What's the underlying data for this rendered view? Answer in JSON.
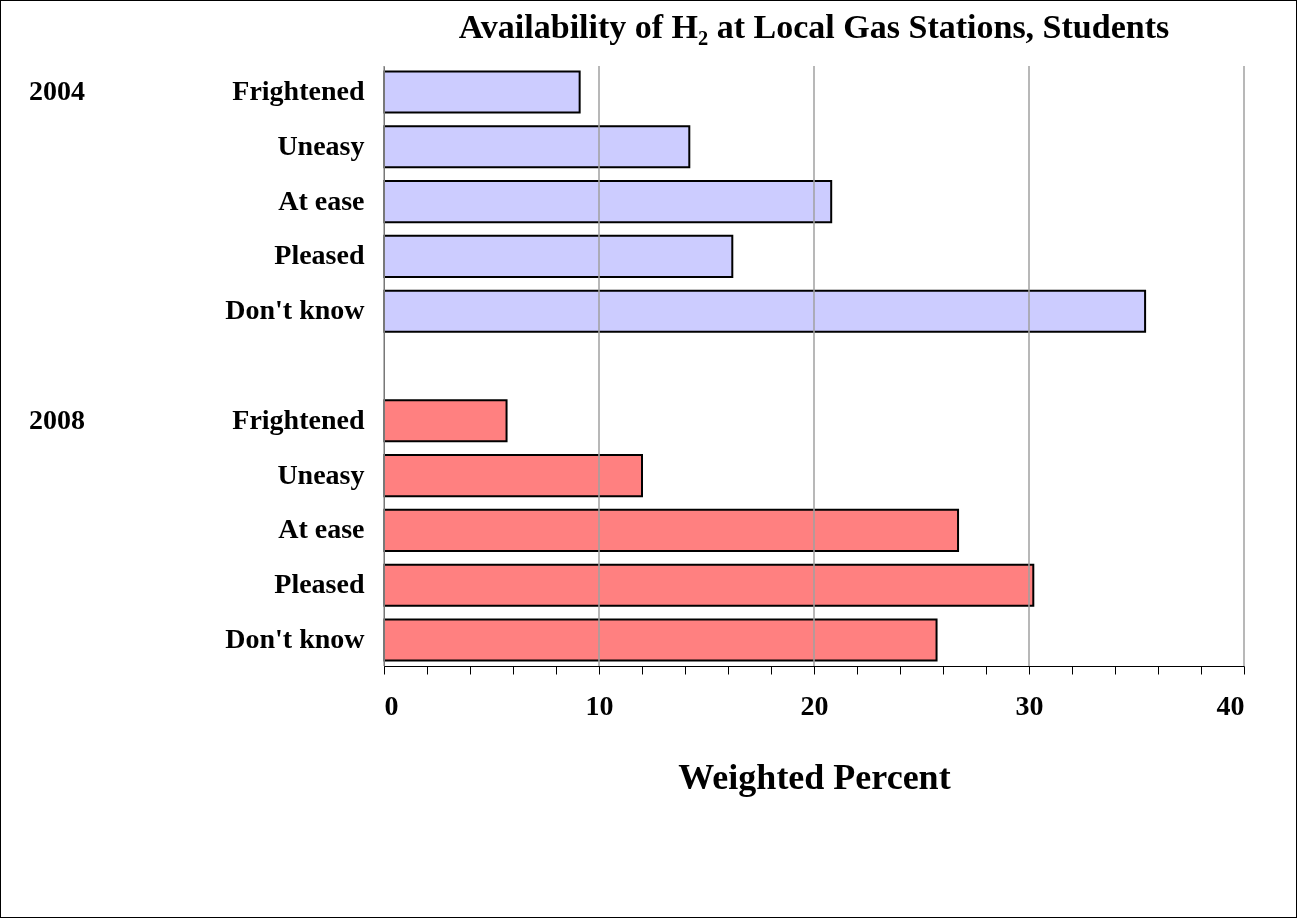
{
  "chart_data": {
    "type": "bar",
    "orientation": "horizontal",
    "title": "Availability of H₂ at Local Gas Stations, Students",
    "xlabel": "Weighted Percent",
    "categories": [
      "Frightened",
      "Uneasy",
      "At ease",
      "Pleased",
      "Don't know",
      null,
      "Frightened",
      "Uneasy",
      "At ease",
      "Pleased",
      "Don't know"
    ],
    "series": [
      {
        "color": "#ccccff",
        "values": [
          9.1,
          14.2,
          20.8,
          16.2,
          35.4,
          null,
          null,
          null,
          null,
          null,
          null
        ]
      },
      {
        "color": "#ff8080",
        "values": [
          null,
          null,
          null,
          null,
          null,
          null,
          5.7,
          12.0,
          26.7,
          30.2,
          25.7
        ]
      }
    ],
    "xlim": [
      0,
      40
    ],
    "xticks": [
      0,
      {
        "value": 2,
        "label": null
      },
      {
        "value": 4,
        "label": null
      },
      {
        "value": 6,
        "label": null
      },
      {
        "value": 8,
        "label": null
      },
      10,
      {
        "value": 12,
        "label": null
      },
      {
        "value": 14,
        "label": null
      },
      {
        "value": 16,
        "label": null
      },
      {
        "value": 18,
        "label": null
      },
      20,
      {
        "value": 22,
        "label": null
      },
      {
        "value": 24,
        "label": null
      },
      {
        "value": 26,
        "label": null
      },
      {
        "value": 28,
        "label": null
      },
      30,
      {
        "value": 32,
        "label": null
      },
      {
        "value": 34,
        "label": null
      },
      {
        "value": 36,
        "label": null
      },
      {
        "value": 38,
        "label": null
      },
      40
    ],
    "grid": "x",
    "legend": false,
    "annotations": [
      "2004",
      "2008"
    ]
  }
}
